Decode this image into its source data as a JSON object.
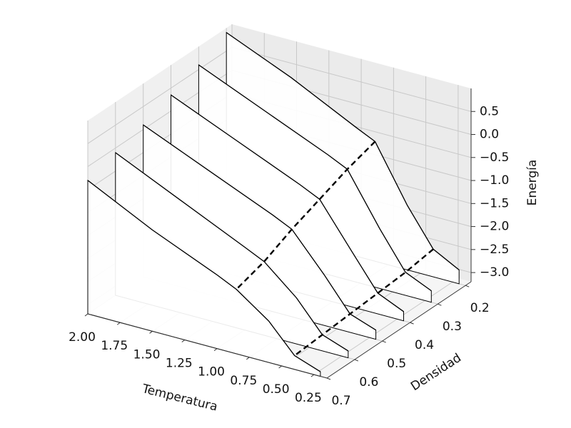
{
  "chart_data": {
    "type": "waterfall3d",
    "xlabel": "Temperatura",
    "ylabel": "Densidad",
    "zlabel": "Energía",
    "xlim": [
      2.0,
      0.15
    ],
    "ylim": [
      0.7,
      0.18
    ],
    "zlim": [
      -3.2,
      1.0
    ],
    "xticks": [
      {
        "value": 2.0,
        "label": "2.00"
      },
      {
        "value": 1.75,
        "label": "1.75"
      },
      {
        "value": 1.5,
        "label": "1.50"
      },
      {
        "value": 1.25,
        "label": "1.25"
      },
      {
        "value": 1.0,
        "label": "1.00"
      },
      {
        "value": 0.75,
        "label": "0.75"
      },
      {
        "value": 0.5,
        "label": "0.50"
      },
      {
        "value": 0.25,
        "label": "0.25"
      }
    ],
    "yticks": [
      0.2,
      0.3,
      0.4,
      0.5,
      0.6,
      0.7
    ],
    "zticks": [
      {
        "value": -3.0,
        "label": "−3.0"
      },
      {
        "value": -2.5,
        "label": "−2.5"
      },
      {
        "value": -2.0,
        "label": "−2.0"
      },
      {
        "value": -1.5,
        "label": "−1.5"
      },
      {
        "value": -1.0,
        "label": "−1.0"
      },
      {
        "value": -0.5,
        "label": "−0.5"
      },
      {
        "value": 0.0,
        "label": "0.0"
      },
      0.5
    ],
    "x": [
      2.0,
      1.5,
      1.0,
      0.85,
      0.6,
      0.4,
      0.2
    ],
    "series": [
      {
        "density": 0.2,
        "color": "#000000",
        "values": [
          0.9,
          0.3,
          -0.4,
          -0.6,
          -1.8,
          -2.6,
          -2.9
        ]
      },
      {
        "density": 0.3,
        "color": "#000000",
        "values": [
          0.6,
          0.0,
          -0.6,
          -0.8,
          -1.9,
          -2.7,
          -2.95
        ]
      },
      {
        "density": 0.4,
        "color": "#000000",
        "values": [
          0.35,
          -0.25,
          -0.85,
          -1.05,
          -2.0,
          -2.75,
          -3.0
        ]
      },
      {
        "density": 0.5,
        "color": "#000000",
        "values": [
          0.1,
          -0.5,
          -1.1,
          -1.3,
          -2.1,
          -2.8,
          -3.0
        ]
      },
      {
        "density": 0.6,
        "color": "#000000",
        "values": [
          -0.1,
          -0.75,
          -1.4,
          -1.6,
          -2.2,
          -2.85,
          -3.05
        ]
      },
      {
        "density": 0.7,
        "color": "#000000",
        "values": [
          -0.3,
          -1.0,
          -1.6,
          -1.8,
          -2.3,
          -2.9,
          -3.1
        ]
      }
    ],
    "transition_lines": [
      {
        "temperature": 0.85,
        "values": [
          -0.6,
          -0.8,
          -1.05,
          -1.3,
          -1.6,
          -1.8
        ]
      },
      {
        "temperature": 0.4,
        "values": [
          -2.6,
          -2.7,
          -2.75,
          -2.8,
          -2.85,
          -2.9
        ]
      }
    ],
    "grid": true
  }
}
